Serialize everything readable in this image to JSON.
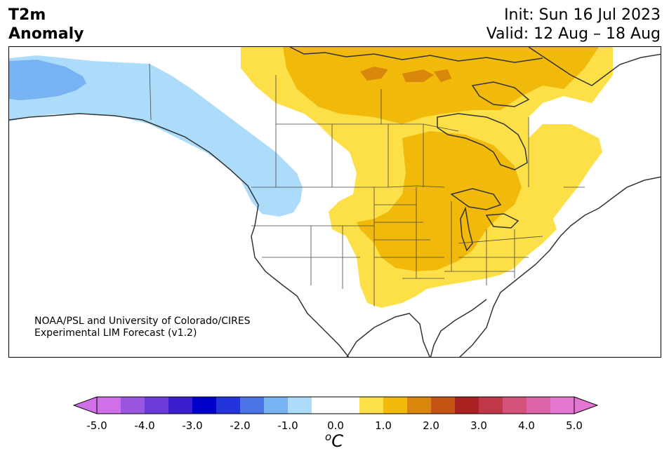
{
  "header": {
    "title_line1": "T2m",
    "title_line2": "Anomaly",
    "init_text": "Init: Sun 16 Jul 2023",
    "valid_text": "Valid: 12 Aug – 18 Aug"
  },
  "credit": {
    "line1": "NOAA/PSL and University of Colorado/CIRES",
    "line2": "Experimental LIM Forecast (v1.2)"
  },
  "colorbar": {
    "unit_base": "C",
    "unit_sup": "o",
    "tick_labels": [
      "-5.0",
      "-4.0",
      "-3.0",
      "-2.0",
      "-1.0",
      "0.0",
      "1.0",
      "2.0",
      "3.0",
      "4.0",
      "5.0"
    ],
    "colors": [
      "#d070e8",
      "#9b55de",
      "#6a3bd8",
      "#3a1fcf",
      "#0000cc",
      "#2434dc",
      "#4a74e6",
      "#77b3f3",
      "#addcfa",
      "#ffffff",
      "#ffffff",
      "#fde047",
      "#f1b90a",
      "#d9870c",
      "#c55414",
      "#aa2322",
      "#c03848",
      "#d4527a",
      "#dd64a8",
      "#e476d2"
    ],
    "extend_low": "#d070e8",
    "extend_high": "#e476d2"
  },
  "map_colors": {
    "cold_light": "#addcfa",
    "cold_mid": "#77b3f3",
    "warm_light": "#fde047",
    "warm_mid": "#f1b90a",
    "warm_strong": "#d9870c",
    "coast": "#333333",
    "border": "#444444"
  }
}
